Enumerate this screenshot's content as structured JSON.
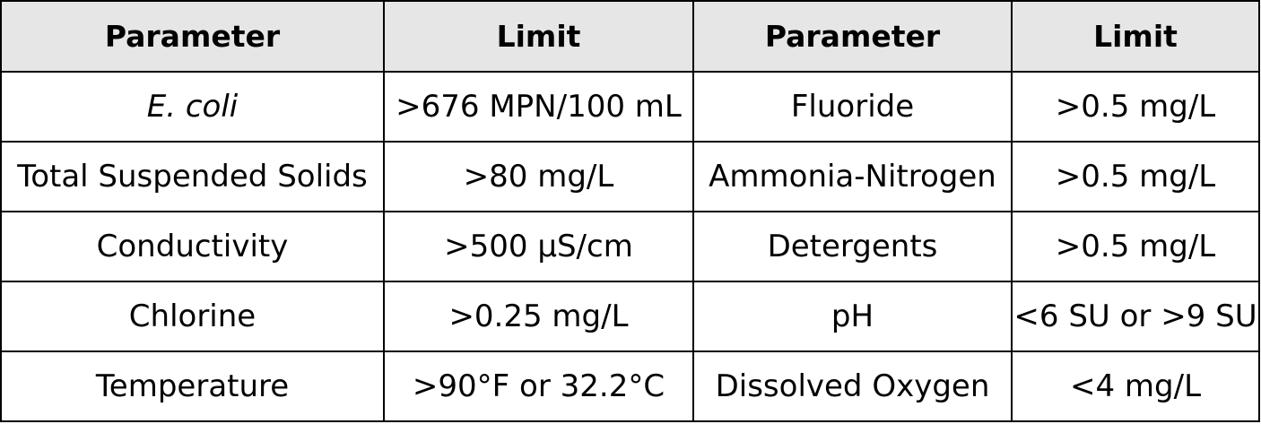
{
  "table": {
    "headers": [
      "Parameter",
      "Limit",
      "Parameter",
      "Limit"
    ],
    "rows": [
      [
        "E. coli",
        ">676 MPN/100 mL",
        "Fluoride",
        ">0.5 mg/L"
      ],
      [
        "Total Suspended Solids",
        ">80 mg/L",
        "Ammonia-Nitrogen",
        ">0.5 mg/L"
      ],
      [
        "Conductivity",
        ">500 µS/cm",
        "Detergents",
        ">0.5 mg/L"
      ],
      [
        "Chlorine",
        ">0.25 mg/L",
        "pH",
        "<6 SU or >9 SU"
      ],
      [
        "Temperature",
        ">90°F or 32.2°C",
        "Dissolved Oxygen",
        "<4 mg/L"
      ]
    ]
  }
}
